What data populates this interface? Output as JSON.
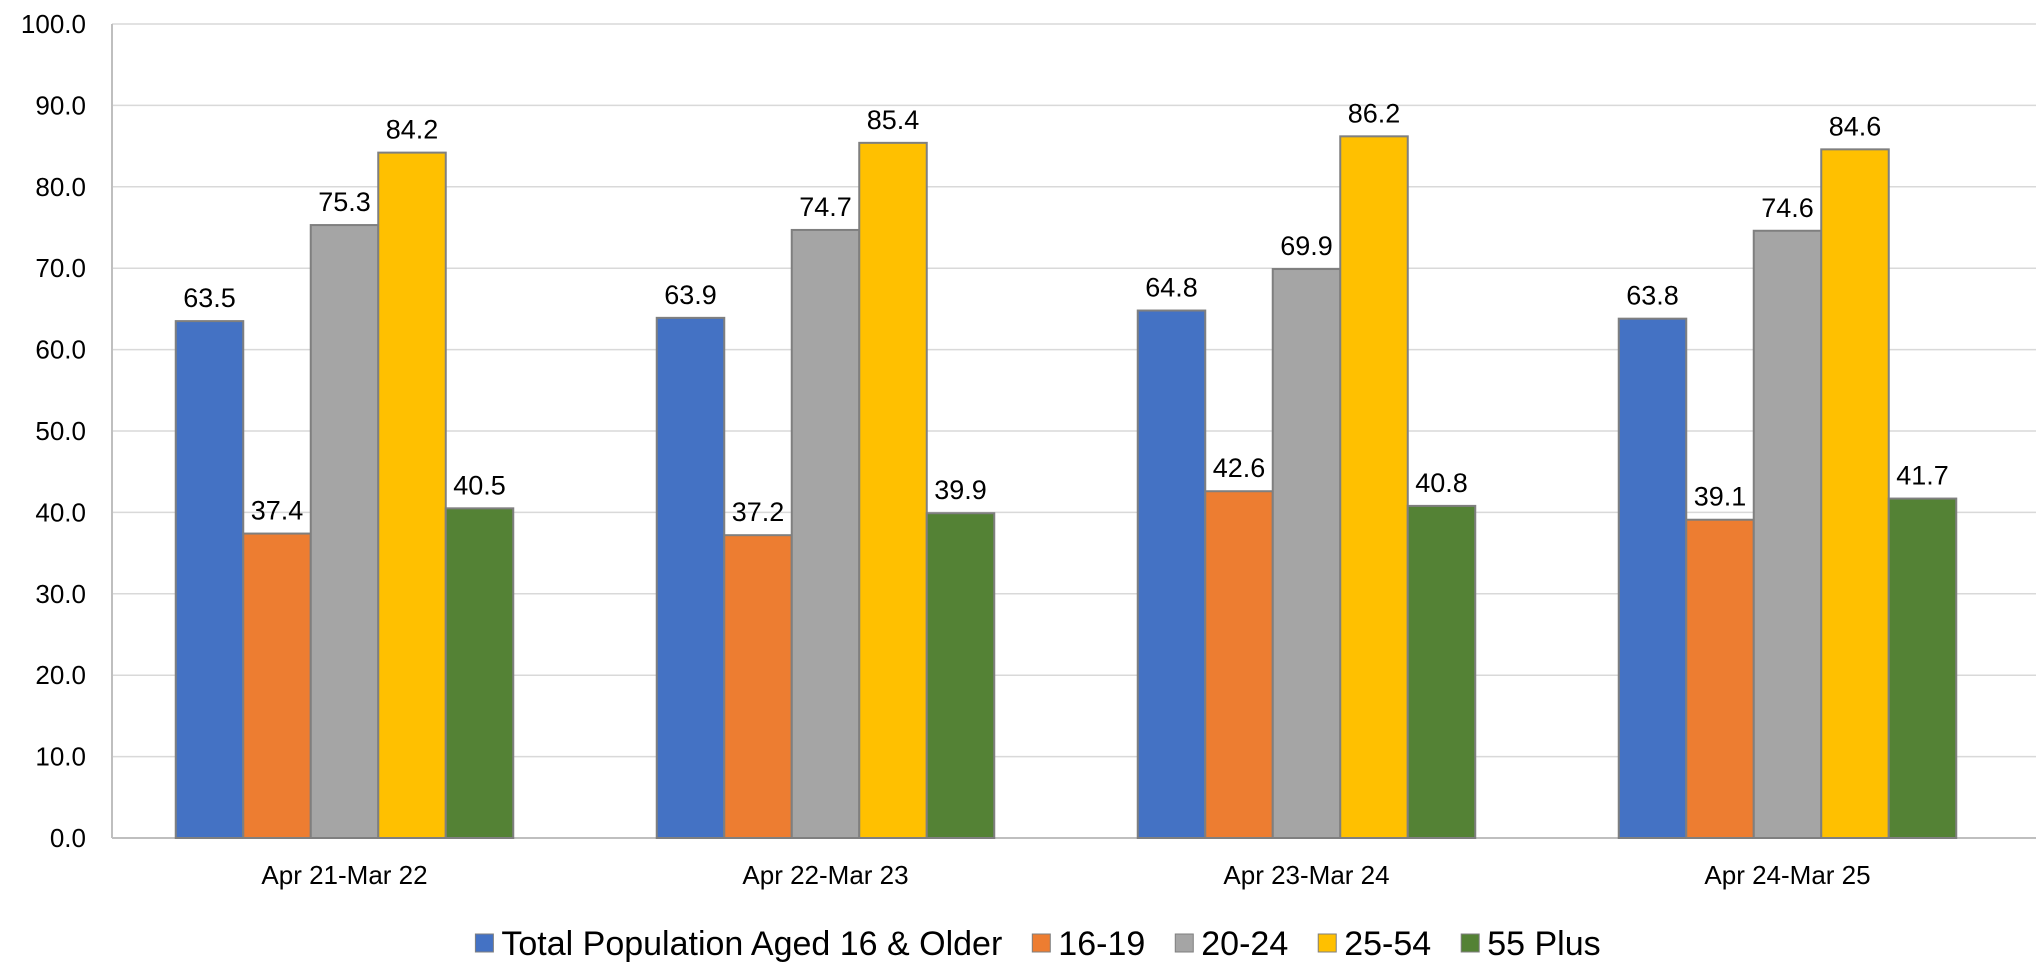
{
  "chart_data": {
    "type": "bar",
    "title": "",
    "xlabel": "",
    "ylabel": "",
    "ylim": [
      0,
      100
    ],
    "y_ticks": [
      "0.0",
      "10.0",
      "20.0",
      "30.0",
      "40.0",
      "50.0",
      "60.0",
      "70.0",
      "80.0",
      "90.0",
      "100.0"
    ],
    "grid": true,
    "legend_position": "bottom",
    "categories": [
      "Apr 21-Mar 22",
      "Apr 22-Mar 23",
      "Apr 23-Mar 24",
      "Apr 24-Mar 25"
    ],
    "series": [
      {
        "name": "Total Population Aged 16 & Older",
        "color": "#4472C4",
        "values": [
          63.5,
          63.9,
          64.8,
          63.8
        ],
        "labels": [
          "63.5",
          "63.9",
          "64.8",
          "63.8"
        ]
      },
      {
        "name": "16-19",
        "color": "#ED7D31",
        "values": [
          37.4,
          37.2,
          42.6,
          39.1
        ],
        "labels": [
          "37.4",
          "37.2",
          "42.6",
          "39.1"
        ]
      },
      {
        "name": "20-24",
        "color": "#A5A5A5",
        "values": [
          75.3,
          74.7,
          69.9,
          74.6
        ],
        "labels": [
          "75.3",
          "74.7",
          "69.9",
          "74.6"
        ]
      },
      {
        "name": "25-54",
        "color": "#FFC000",
        "values": [
          84.2,
          85.4,
          86.2,
          84.6
        ],
        "labels": [
          "84.2",
          "85.4",
          "86.2",
          "84.6"
        ]
      },
      {
        "name": "55 Plus",
        "color": "#548235",
        "values": [
          40.5,
          39.9,
          40.8,
          41.7
        ],
        "labels": [
          "40.5",
          "39.9",
          "40.8",
          "41.7"
        ]
      }
    ]
  }
}
